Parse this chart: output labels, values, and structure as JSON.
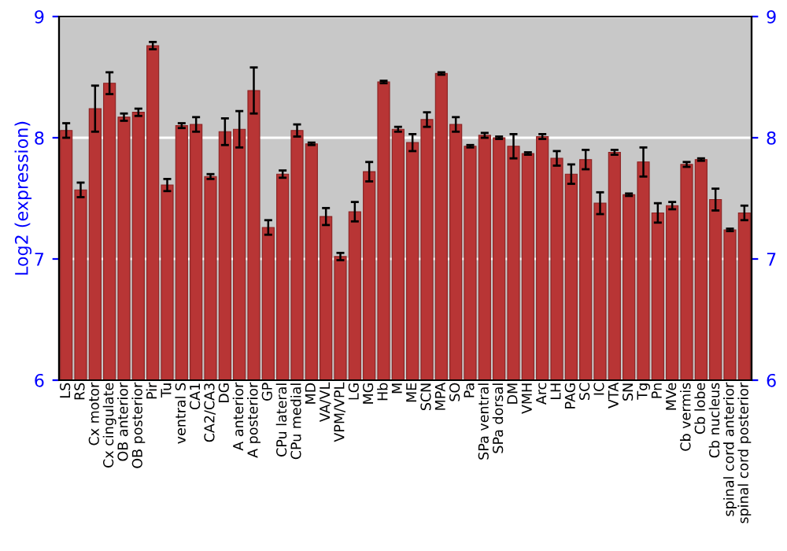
{
  "chart_data": {
    "type": "bar",
    "ylabel": "Log2 (expression)",
    "categories": [
      "LS",
      "RS",
      "Cx motor",
      "Cx cingulate",
      "OB anterior",
      "OB posterior",
      "Pir",
      "Tu",
      "ventral S",
      "CA1",
      "CA2/CA3",
      "DG",
      "A anterior",
      "A posterior",
      "GP",
      "CPu lateral",
      "CPu medial",
      "MD",
      "VA/VL",
      "VPM/VPL",
      "LG",
      "MG",
      "Hb",
      "M",
      "ME",
      "SCN",
      "MPA",
      "SO",
      "Pa",
      "SPa ventral",
      "SPa dorsal",
      "DM",
      "VMH",
      "Arc",
      "LH",
      "PAG",
      "SC",
      "IC",
      "VTA",
      "SN",
      "Tg",
      "Pn",
      "MVe",
      "Cb vermis",
      "Cb lobe",
      "Cb nucleus",
      "spinal cord anterior",
      "spinal cord posterior"
    ],
    "values": [
      8.06,
      7.57,
      8.24,
      8.45,
      8.17,
      8.21,
      8.76,
      7.61,
      8.1,
      8.11,
      7.68,
      8.05,
      8.07,
      8.39,
      7.26,
      7.7,
      8.06,
      7.95,
      7.35,
      7.02,
      7.39,
      7.72,
      8.46,
      8.07,
      7.96,
      8.15,
      8.53,
      8.11,
      7.93,
      8.02,
      8.0,
      7.93,
      7.87,
      8.01,
      7.83,
      7.7,
      7.82,
      7.46,
      7.88,
      7.53,
      7.8,
      7.38,
      7.44,
      7.78,
      7.82,
      7.49,
      7.24,
      7.38
    ],
    "errors": [
      0.06,
      0.06,
      0.19,
      0.09,
      0.03,
      0.03,
      0.03,
      0.05,
      0.02,
      0.06,
      0.02,
      0.11,
      0.15,
      0.19,
      0.06,
      0.03,
      0.05,
      0.01,
      0.07,
      0.03,
      0.08,
      0.08,
      0.01,
      0.02,
      0.07,
      0.06,
      0.01,
      0.06,
      0.01,
      0.02,
      0.01,
      0.1,
      0.01,
      0.02,
      0.06,
      0.08,
      0.08,
      0.09,
      0.02,
      0.01,
      0.12,
      0.08,
      0.03,
      0.02,
      0.01,
      0.09,
      0.01,
      0.06
    ],
    "color": "#b83535",
    "ylim": [
      6,
      9
    ],
    "yticks": [
      6,
      7,
      8,
      9
    ],
    "y2lim": [
      6,
      9
    ],
    "y2ticks": [
      6,
      7,
      8,
      9
    ],
    "grid": "y"
  }
}
